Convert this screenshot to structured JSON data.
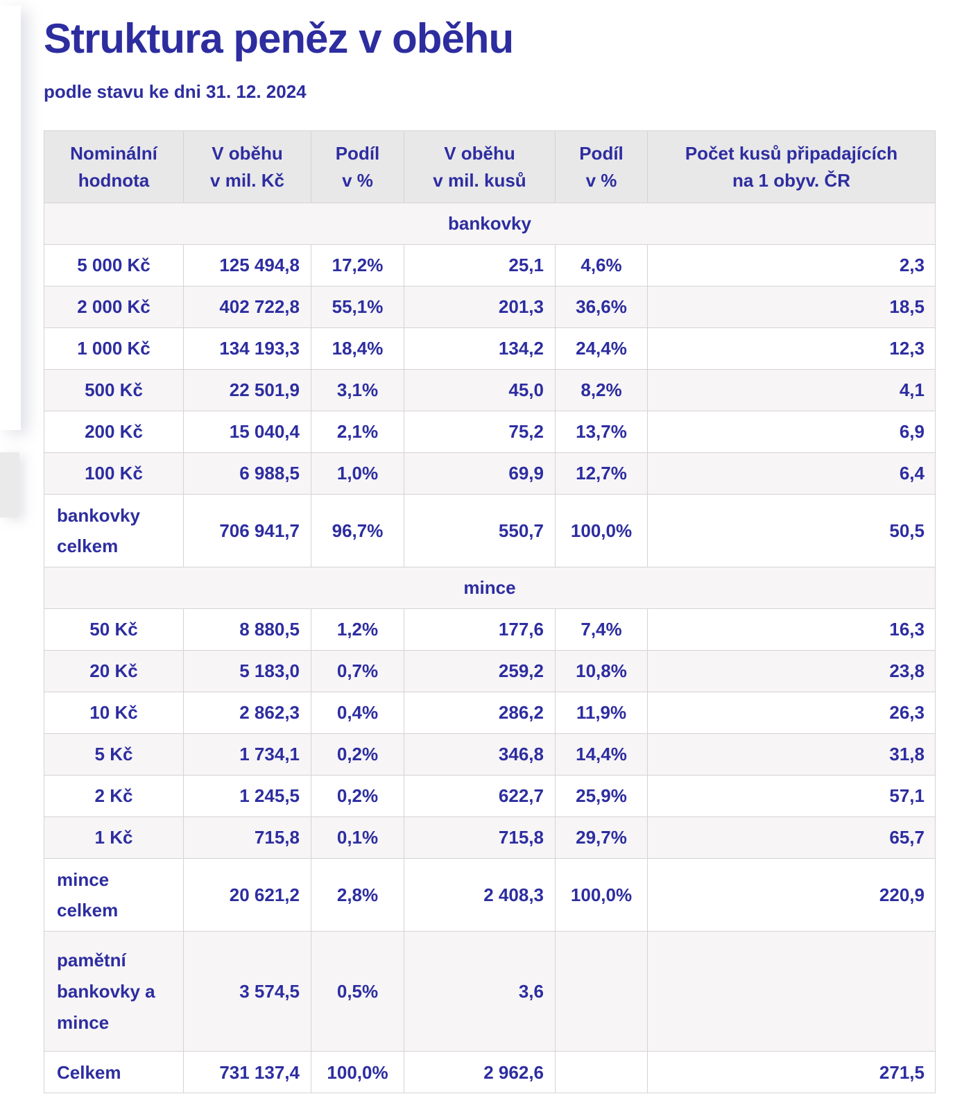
{
  "page": {
    "title": "Struktura peněz v oběhu",
    "subtitle": "podle stavu ke dni 31. 12. 2024"
  },
  "colors": {
    "text_navy": "#2d2da0",
    "header_bg": "#e9e8e9",
    "stripe_bg": "#f7f5f6",
    "border": "#d5d3d4",
    "page_bg": "#ffffff"
  },
  "table": {
    "columns": [
      "Nominální\nhodnota",
      "V oběhu\nv mil. Kč",
      "Podíl\nv %",
      "V oběhu\nv mil. kusů",
      "Podíl\nv %",
      "Počet kusů připadajících\nna 1 obyv. ČR"
    ],
    "rows": [
      {
        "type": "section",
        "label": "bankovky"
      },
      {
        "type": "data",
        "cells": [
          "5 000 Kč",
          "125 494,8",
          "17,2%",
          "25,1",
          "4,6%",
          "2,3"
        ]
      },
      {
        "type": "data",
        "cells": [
          "2 000 Kč",
          "402 722,8",
          "55,1%",
          "201,3",
          "36,6%",
          "18,5"
        ]
      },
      {
        "type": "data",
        "cells": [
          "1 000 Kč",
          "134 193,3",
          "18,4%",
          "134,2",
          "24,4%",
          "12,3"
        ]
      },
      {
        "type": "data",
        "cells": [
          "500 Kč",
          "22 501,9",
          "3,1%",
          "45,0",
          "8,2%",
          "4,1"
        ]
      },
      {
        "type": "data",
        "cells": [
          "200 Kč",
          "15 040,4",
          "2,1%",
          "75,2",
          "13,7%",
          "6,9"
        ]
      },
      {
        "type": "data",
        "cells": [
          "100 Kč",
          "6 988,5",
          "1,0%",
          "69,9",
          "12,7%",
          "6,4"
        ]
      },
      {
        "type": "total",
        "lines": 2,
        "cells": [
          "bankovky\ncelkem",
          "706 941,7",
          "96,7%",
          "550,7",
          "100,0%",
          "50,5"
        ]
      },
      {
        "type": "section",
        "label": "mince"
      },
      {
        "type": "data",
        "cells": [
          "50 Kč",
          "8 880,5",
          "1,2%",
          "177,6",
          "7,4%",
          "16,3"
        ]
      },
      {
        "type": "data",
        "cells": [
          "20 Kč",
          "5 183,0",
          "0,7%",
          "259,2",
          "10,8%",
          "23,8"
        ]
      },
      {
        "type": "data",
        "cells": [
          "10 Kč",
          "2 862,3",
          "0,4%",
          "286,2",
          "11,9%",
          "26,3"
        ]
      },
      {
        "type": "data",
        "cells": [
          "5 Kč",
          "1 734,1",
          "0,2%",
          "346,8",
          "14,4%",
          "31,8"
        ]
      },
      {
        "type": "data",
        "cells": [
          "2 Kč",
          "1 245,5",
          "0,2%",
          "622,7",
          "25,9%",
          "57,1"
        ]
      },
      {
        "type": "data",
        "cells": [
          "1 Kč",
          "715,8",
          "0,1%",
          "715,8",
          "29,7%",
          "65,7"
        ]
      },
      {
        "type": "total",
        "lines": 2,
        "cells": [
          "mince\ncelkem",
          "20 621,2",
          "2,8%",
          "2 408,3",
          "100,0%",
          "220,9"
        ]
      },
      {
        "type": "total",
        "lines": 3,
        "cells": [
          "pamětní\nbankovky a\nmince",
          "3 574,5",
          "0,5%",
          "3,6",
          "",
          ""
        ]
      },
      {
        "type": "total",
        "lines": 1,
        "cells": [
          "Celkem",
          "731 137,4",
          "100,0%",
          "2 962,6",
          "",
          "271,5"
        ]
      }
    ]
  }
}
